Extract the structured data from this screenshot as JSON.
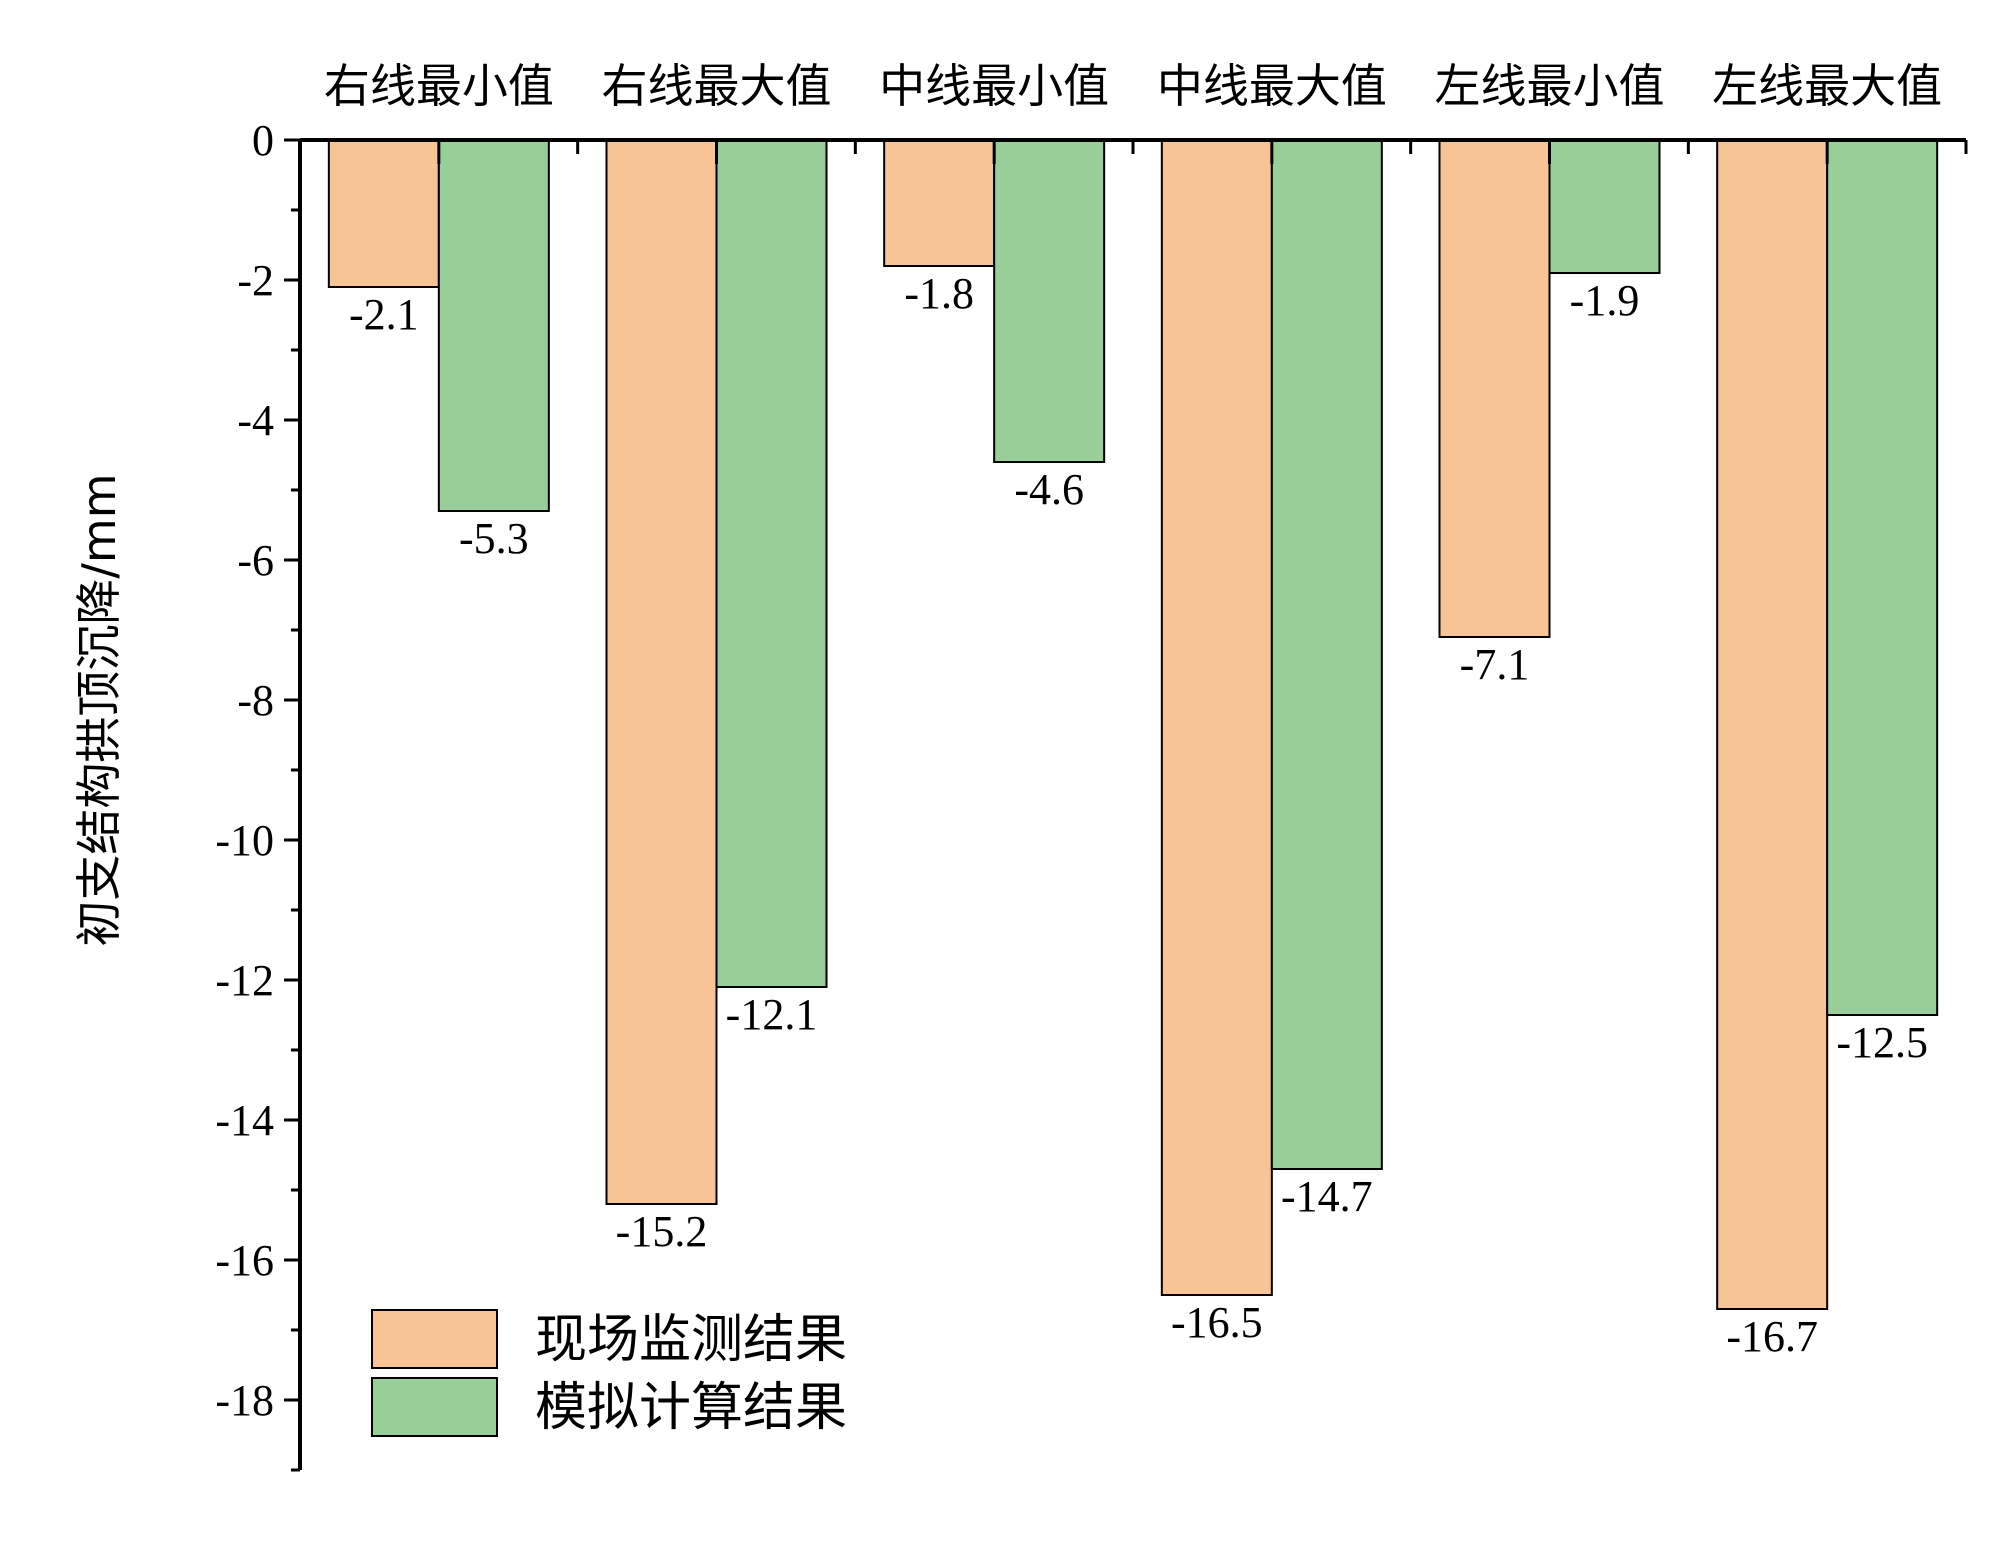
{
  "chart_data": {
    "type": "bar",
    "categories": [
      "右线最小值",
      "右线最大值",
      "中线最小值",
      "中线最大值",
      "左线最小值",
      "左线最大值"
    ],
    "series": [
      {
        "name": "现场监测结果",
        "values": [
          -2.1,
          -15.2,
          -1.8,
          -16.5,
          -7.1,
          -16.7
        ],
        "color": "#F8C496"
      },
      {
        "name": "模拟计算结果",
        "values": [
          -5.3,
          -12.1,
          -4.6,
          -14.7,
          -1.9,
          -12.5
        ],
        "color": "#98CF98"
      }
    ],
    "data_labels": [
      [
        "-2.1",
        "-15.2",
        "-1.8",
        "-16.5",
        "-7.1",
        "-16.7"
      ],
      [
        "-5.3",
        "-12.1",
        "-4.6",
        "-14.7",
        "-1.9",
        "-12.5"
      ]
    ],
    "title": "",
    "xlabel": "",
    "ylabel": "初支结构拱顶沉降/mm",
    "ylim": [
      -19,
      0
    ],
    "yticks": [
      0,
      -2,
      -4,
      -6,
      -8,
      -10,
      -12,
      -14,
      -16,
      -18
    ],
    "x_axis_position": "top",
    "grid": false,
    "legend_position": "bottom-left"
  }
}
